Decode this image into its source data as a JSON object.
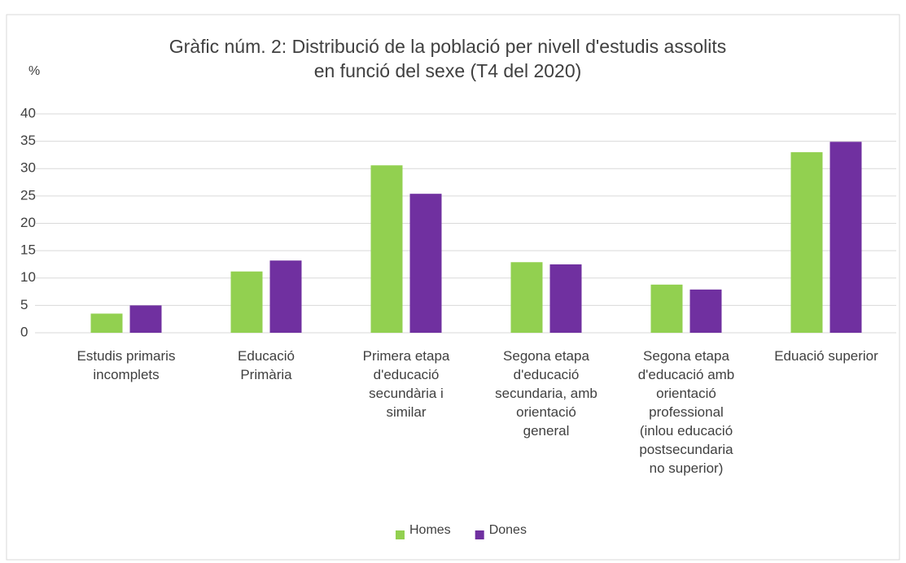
{
  "chart_data": {
    "type": "bar",
    "title": "Gràfic núm. 2: Distribució de la població per nivell d'estudis assolits\n      en funció del sexe (T4 del 2020)",
    "y_label": "%",
    "categories": [
      "Estudis primaris\nincomplets",
      "Educació\nPrimària",
      "Primera etapa\nd'educació\nsecundària i\nsimilar",
      "Segona  etapa\nd'educació\nsecundaria,  amb\norientació\ngeneral",
      "Segona etapa\nd'educació amb\norientació\nprofessional\n(inlou educació\npostsecundaria\nno superior)",
      "Eduació superior"
    ],
    "series": [
      {
        "name": "Homes",
        "color": "#92d050",
        "values": [
          3.5,
          11.2,
          30.6,
          12.9,
          8.8,
          33.0
        ]
      },
      {
        "name": "Dones",
        "color": "#7030a0",
        "values": [
          5.0,
          13.2,
          25.4,
          12.5,
          7.9,
          34.9
        ]
      }
    ],
    "ylim": [
      0,
      40
    ],
    "yticks": [
      0,
      5,
      10,
      15,
      20,
      25,
      30,
      35,
      40
    ],
    "grid": true,
    "legend": "bottom"
  }
}
